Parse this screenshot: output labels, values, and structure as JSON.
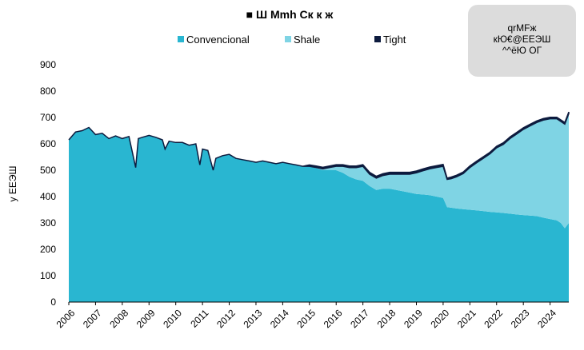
{
  "chart_data": {
    "type": "area",
    "stacked": true,
    "title": "■ Ш Мmh Ск к ж",
    "ylabel": "у ЕЕЭШ",
    "ylim": [
      0,
      900
    ],
    "yticks": [
      0,
      100,
      200,
      300,
      400,
      500,
      600,
      700,
      800,
      900
    ],
    "x_tick_labels": [
      "2006",
      "2007",
      "2008",
      "2009",
      "2010",
      "2011",
      "2012",
      "2013",
      "2014",
      "2015",
      "2016",
      "2017",
      "2018",
      "2019",
      "2020",
      "2021",
      "2022",
      "2023",
      "2024"
    ],
    "legend_position": "top",
    "grid": false,
    "note": "qrМFж\nкЮ€@ЕЕЭШ\n^^ёЮ ОГ",
    "x": [
      2006.0,
      2006.25,
      2006.5,
      2006.75,
      2007.0,
      2007.25,
      2007.5,
      2007.75,
      2008.0,
      2008.25,
      2008.5,
      2008.6,
      2008.75,
      2009.0,
      2009.25,
      2009.5,
      2009.6,
      2009.75,
      2010.0,
      2010.25,
      2010.5,
      2010.75,
      2010.9,
      2011.0,
      2011.2,
      2011.4,
      2011.5,
      2011.75,
      2012.0,
      2012.25,
      2012.5,
      2012.75,
      2013.0,
      2013.25,
      2013.5,
      2013.75,
      2014.0,
      2014.25,
      2014.5,
      2014.75,
      2015.0,
      2015.25,
      2015.5,
      2015.75,
      2016.0,
      2016.25,
      2016.5,
      2016.75,
      2017.0,
      2017.25,
      2017.5,
      2017.75,
      2018.0,
      2018.25,
      2018.5,
      2018.75,
      2019.0,
      2019.25,
      2019.5,
      2019.75,
      2020.0,
      2020.15,
      2020.3,
      2020.5,
      2020.75,
      2021.0,
      2021.25,
      2021.5,
      2021.75,
      2022.0,
      2022.25,
      2022.5,
      2022.75,
      2023.0,
      2023.25,
      2023.5,
      2023.75,
      2024.0,
      2024.25,
      2024.4,
      2024.55,
      2024.7
    ],
    "series": [
      {
        "name": "Convencional",
        "color": "#29b6d1",
        "values": [
          615,
          645,
          650,
          662,
          635,
          640,
          620,
          630,
          620,
          628,
          510,
          620,
          625,
          632,
          625,
          615,
          580,
          610,
          605,
          605,
          595,
          600,
          520,
          580,
          575,
          500,
          545,
          555,
          560,
          545,
          540,
          535,
          530,
          535,
          530,
          525,
          530,
          525,
          520,
          515,
          515,
          508,
          500,
          500,
          500,
          490,
          475,
          465,
          460,
          440,
          425,
          430,
          430,
          425,
          420,
          415,
          410,
          408,
          405,
          400,
          395,
          360,
          358,
          355,
          352,
          350,
          348,
          345,
          342,
          340,
          338,
          335,
          332,
          330,
          328,
          326,
          320,
          315,
          310,
          300,
          280,
          300
        ]
      },
      {
        "name": "Shale",
        "color": "#7fd4e4",
        "values": [
          0,
          0,
          0,
          0,
          0,
          0,
          0,
          0,
          0,
          0,
          0,
          0,
          0,
          0,
          0,
          0,
          0,
          0,
          0,
          0,
          0,
          0,
          0,
          0,
          0,
          0,
          0,
          0,
          0,
          0,
          0,
          0,
          0,
          0,
          0,
          0,
          0,
          0,
          0,
          0,
          0,
          2,
          5,
          10,
          15,
          25,
          35,
          45,
          55,
          45,
          45,
          50,
          55,
          60,
          65,
          70,
          80,
          90,
          100,
          110,
          120,
          105,
          110,
          120,
          135,
          160,
          180,
          200,
          220,
          245,
          260,
          285,
          305,
          325,
          340,
          355,
          370,
          380,
          385,
          385,
          395,
          415
        ]
      },
      {
        "name": "Tight",
        "color": "#0d1b3e",
        "values": [
          0,
          0,
          0,
          0,
          0,
          0,
          0,
          0,
          0,
          0,
          0,
          0,
          0,
          0,
          0,
          0,
          0,
          0,
          0,
          0,
          0,
          0,
          0,
          0,
          0,
          0,
          0,
          0,
          0,
          0,
          0,
          0,
          0,
          0,
          0,
          0,
          0,
          0,
          0,
          0,
          5,
          6,
          6,
          6,
          6,
          6,
          6,
          6,
          6,
          7,
          7,
          7,
          7,
          7,
          7,
          7,
          7,
          7,
          7,
          7,
          7,
          5,
          6,
          6,
          6,
          6,
          6,
          6,
          6,
          6,
          6,
          6,
          6,
          6,
          6,
          6,
          6,
          6,
          6,
          6,
          6,
          6
        ]
      }
    ]
  }
}
